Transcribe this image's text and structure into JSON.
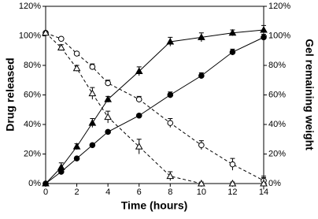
{
  "chart_data": {
    "type": "line",
    "xlabel": "Time (hours)",
    "ylabel": "Drug released",
    "y2label": "Gel remaining weight",
    "x": [
      0,
      1,
      2,
      3,
      4,
      6,
      8,
      10,
      12,
      14
    ],
    "xlim": [
      0,
      14
    ],
    "xticks": [
      0,
      2,
      4,
      6,
      8,
      10,
      12,
      14
    ],
    "ylim": [
      0,
      120
    ],
    "yticks": [
      {
        "value": 0,
        "label": "0%"
      },
      {
        "value": 20,
        "label": "20%"
      },
      {
        "value": 40,
        "label": "40%"
      },
      {
        "value": 60,
        "label": "60%"
      },
      {
        "value": 80,
        "label": "80%"
      },
      {
        "value": 100,
        "label": "100%"
      },
      {
        "value": 120,
        "label": "120%"
      }
    ],
    "y2lim": [
      0,
      120
    ],
    "y2ticks": [
      {
        "value": 0,
        "label": "0%"
      },
      {
        "value": 20,
        "label": "20%"
      },
      {
        "value": 40,
        "label": "40%"
      },
      {
        "value": 60,
        "label": "60%"
      },
      {
        "value": 80,
        "label": "80%"
      },
      {
        "value": 100,
        "label": "100%"
      },
      {
        "value": 120,
        "label": "120%"
      }
    ],
    "series": [
      {
        "color": "#000000",
        "marker": "triangle",
        "filled": true,
        "dashed": false,
        "values": [
          0,
          11,
          25,
          41,
          57,
          76,
          96,
          99,
          102,
          104
        ],
        "errors": [
          1,
          3,
          2,
          3,
          2,
          3,
          3,
          3,
          2,
          3
        ]
      },
      {
        "color": "#000000",
        "marker": "circle",
        "filled": true,
        "dashed": false,
        "values": [
          0,
          8,
          17,
          26,
          35,
          46,
          60,
          73,
          89,
          99
        ],
        "errors": [
          1,
          2,
          1,
          1,
          1,
          1,
          2,
          2,
          2,
          2
        ]
      },
      {
        "color": "#000000",
        "marker": "circle",
        "filled": false,
        "dashed": true,
        "axis": "y2",
        "values": [
          102,
          98,
          88,
          79,
          68,
          57,
          41,
          26,
          13,
          2
        ],
        "errors": [
          1,
          1,
          1,
          2,
          2,
          2,
          3,
          3,
          4,
          3
        ]
      },
      {
        "color": "#000000",
        "marker": "triangle",
        "filled": false,
        "dashed": true,
        "axis": "y2",
        "values": [
          102,
          92,
          78,
          61,
          45,
          25,
          5,
          0,
          0,
          0
        ],
        "errors": [
          1,
          2,
          2,
          4,
          4,
          5,
          3,
          1,
          1,
          4
        ]
      }
    ]
  }
}
